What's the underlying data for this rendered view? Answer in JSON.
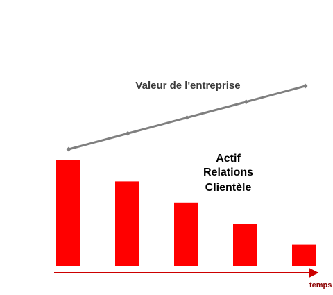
{
  "chart_data": {
    "type": "bar",
    "categories": [
      "",
      "",
      "",
      "",
      ""
    ],
    "bar_series": {
      "name": "Actif Relations Clientèle",
      "values": [
        100,
        80,
        60,
        40,
        20
      ],
      "color": "#ff0000"
    },
    "line_series": {
      "name": "Valeur de l'entreprise",
      "values": [
        100,
        120,
        140,
        160,
        180
      ],
      "color": "#7f7f7f"
    },
    "annotations": {
      "line_label": "Valeur de l'entreprise",
      "bar_label_lines": [
        "Actif",
        "Relations",
        "Clientèle"
      ]
    },
    "x_axis": {
      "label": "temps",
      "color": "#cc0000"
    },
    "title": "",
    "ylabel": "",
    "ylim": [
      0,
      100
    ],
    "grid": false,
    "legend": "none"
  }
}
